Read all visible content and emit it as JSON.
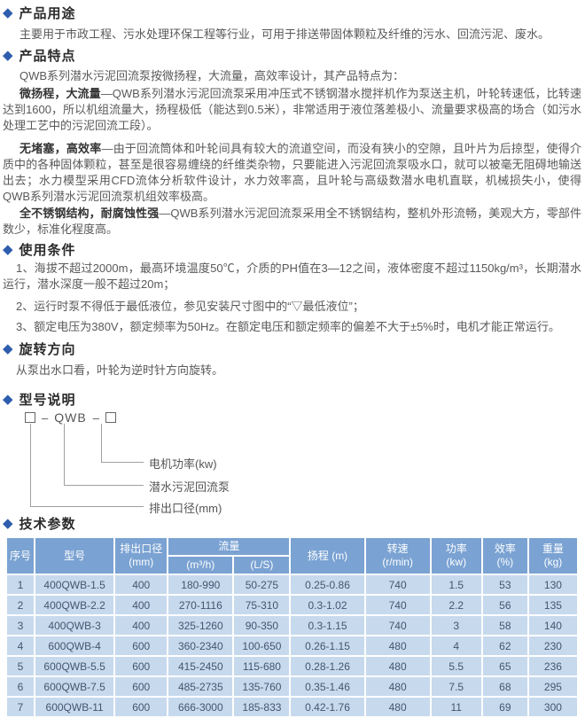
{
  "icons": {
    "bullet": "◆"
  },
  "colors": {
    "accent": "#2e5dad",
    "table_header_bg": "#7aa2d2",
    "table_row_bg": "#c7d9ed",
    "table_row_text": "#44566e"
  },
  "sections": {
    "usage": {
      "title": "产品用途",
      "body": "主要用于市政工程、污水处理环保工程等行业，可用于排送带固体颗粒及纤维的污水、回流污泥、废水。"
    },
    "features": {
      "title": "产品特点",
      "intro": "QWB系列潜水污泥回流泵按微扬程，大流量，高效率设计，其产品特点为：",
      "paragraphs": [
        {
          "lead": "微扬程，大流量",
          "rest": "—QWB系列潜水污泥回流泵采用冲压式不锈钢潜水搅拌机作为泵送主机，叶轮转速低，比转速达到1600，所以机组流量大，扬程极低（能达到0.5米），非常适用于液位落差极小、流量要求极高的场合（如污水处理工艺中的污泥回流工段）。"
        },
        {
          "lead": "无堵塞，高效率",
          "rest": "—由于回流筒体和叶轮间具有较大的流道空间，而没有狭小的空隙，且叶片为后掠型，使得介质中的各种固体颗粒，甚至是很容易缠绕的纤维类杂物，只要能进入污泥回流泵吸水口，就可以被毫无阻碍地输送出去；水力模型采用CFD流体分析软件设计，水力效率高，且叶轮与高级数潜水电机直联，机械损失小，使得QWB系列潜水污泥回流泵机组效率极高。"
        },
        {
          "lead": "全不锈钢结构，耐腐蚀性强",
          "rest": "—QWB系列潜水污泥回流泵采用全不锈钢结构，整机外形流畅，美观大方，零部件数少，标准化程度高。"
        }
      ]
    },
    "conditions": {
      "title": "使用条件",
      "items": [
        "1、海拔不超过2000m，最高环境温度50℃，介质的PH值在3—12之间，液体密度不超过1150kg/m³，长期潜水运行，潜水深度一般不超过20m；",
        "2、运行时泵不得低于最低液位，参见安装尺寸图中的“▽最低液位”；",
        "3、额定电压为380V，额定频率为50Hz。在额定电压和额定频率的偏差不大于±5%时，电机才能正常运行。"
      ]
    },
    "rotation": {
      "title": "旋转方向",
      "body": "从泵出水口看，叶轮为逆时针方向旋转。"
    },
    "model": {
      "title": "型号说明",
      "dash": "–",
      "code": "QWB",
      "labels": [
        "电机功率(kw)",
        "潜水污泥回流泵",
        "排出口径(mm)"
      ]
    },
    "specs": {
      "title": "技术参数",
      "table": {
        "headers": {
          "no": "序号",
          "model": "型号",
          "outlet_l1": "排出口径",
          "outlet_l2": "(mm)",
          "flow": "流量",
          "flow_sub1": "(m³/h)",
          "flow_sub2": "(L/S)",
          "head": "扬程 (m)",
          "speed_l1": "转速",
          "speed_l2": "(r/min)",
          "power_l1": "功率",
          "power_l2": "(kw)",
          "eff_l1": "效率",
          "eff_l2": "(%)",
          "weight_l1": "重量",
          "weight_l2": "(kg)"
        },
        "rows": [
          [
            "1",
            "400QWB-1.5",
            "400",
            "180-990",
            "50-275",
            "0.25-0.86",
            "740",
            "1.5",
            "53",
            "130"
          ],
          [
            "2",
            "400QWB-2.2",
            "400",
            "270-1116",
            "75-310",
            "0.3-1.02",
            "740",
            "2.2",
            "56",
            "135"
          ],
          [
            "3",
            "400QWB-3",
            "400",
            "325-1260",
            "90-350",
            "0.3-1.15",
            "740",
            "3",
            "58",
            "140"
          ],
          [
            "4",
            "600QWB-4",
            "600",
            "360-2340",
            "100-650",
            "0.26-1.15",
            "480",
            "4",
            "62",
            "230"
          ],
          [
            "5",
            "600QWB-5.5",
            "600",
            "415-2450",
            "115-680",
            "0.28-1.26",
            "480",
            "5.5",
            "65",
            "236"
          ],
          [
            "6",
            "600QWB-7.5",
            "600",
            "485-2735",
            "135-760",
            "0.35-1.46",
            "480",
            "7.5",
            "68",
            "295"
          ],
          [
            "7",
            "600QWB-11",
            "600",
            "666-3000",
            "185-833",
            "0.42-1.76",
            "480",
            "11",
            "69",
            "300"
          ]
        ]
      }
    }
  }
}
